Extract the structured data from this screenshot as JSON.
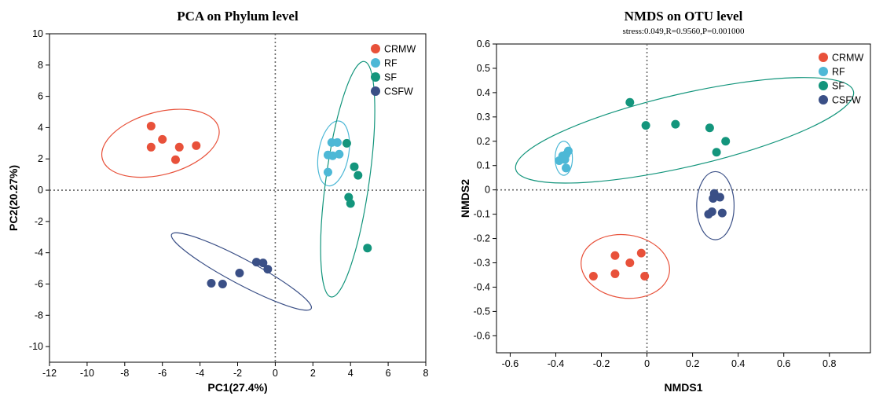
{
  "chart_data": [
    {
      "type": "scatter",
      "title": "PCA on Phylum level",
      "subtitle": "",
      "xlabel": "PC1(27.4%)",
      "ylabel": "PC2(20.27%)",
      "xlim": [
        -12,
        8
      ],
      "ylim": [
        -11,
        10
      ],
      "xticks": [
        -12,
        -10,
        -8,
        -6,
        -4,
        -2,
        0,
        2,
        4,
        6,
        8
      ],
      "yticks": [
        -10,
        -8,
        -6,
        -4,
        -2,
        0,
        2,
        4,
        6,
        8,
        10
      ],
      "reference_lines": {
        "x": 0,
        "y": 0,
        "style": "dotted"
      },
      "legend": {
        "placement": "top-right"
      },
      "series": [
        {
          "name": "CRMW",
          "color": "#e8513a",
          "points": [
            [
              -6.6,
              4.1
            ],
            [
              -6.6,
              2.75
            ],
            [
              -6.0,
              3.25
            ],
            [
              -5.1,
              2.75
            ],
            [
              -5.3,
              1.95
            ],
            [
              -4.2,
              2.85
            ]
          ],
          "ellipse": {
            "cx": -6.1,
            "cy": 3.0,
            "rx": 3.2,
            "ry": 2.0,
            "angle_deg": -15
          }
        },
        {
          "name": "RF",
          "color": "#4db8d6",
          "points": [
            [
              2.8,
              2.25
            ],
            [
              3.0,
              3.05
            ],
            [
              3.05,
              2.2
            ],
            [
              3.3,
              3.05
            ],
            [
              3.4,
              2.3
            ],
            [
              2.8,
              1.15
            ]
          ],
          "ellipse": {
            "cx": 3.1,
            "cy": 2.35,
            "rx": 0.8,
            "ry": 2.1,
            "angle_deg": 10
          }
        },
        {
          "name": "SF",
          "color": "#13957c",
          "points": [
            [
              3.8,
              3.0
            ],
            [
              4.2,
              1.5
            ],
            [
              4.4,
              0.95
            ],
            [
              3.9,
              -0.45
            ],
            [
              4.0,
              -0.85
            ],
            [
              4.9,
              -3.7
            ]
          ],
          "ellipse": {
            "cx": 3.85,
            "cy": 0.7,
            "rx": 1.15,
            "ry": 7.6,
            "angle_deg": 8
          }
        },
        {
          "name": "CSFW",
          "color": "#3a4f86",
          "points": [
            [
              -1.0,
              -4.6
            ],
            [
              -0.65,
              -4.65
            ],
            [
              -0.4,
              -5.05
            ],
            [
              -1.9,
              -5.3
            ],
            [
              -2.8,
              -6.0
            ],
            [
              -3.4,
              -5.95
            ]
          ],
          "ellipse": {
            "cx": -1.8,
            "cy": -5.2,
            "rx": 4.2,
            "ry": 0.8,
            "angle_deg": 28
          }
        }
      ]
    },
    {
      "type": "scatter",
      "title": "NMDS on OTU level",
      "subtitle": "stress:0.049,R=0.9560,P=0.001000",
      "xlabel": "NMDS1",
      "ylabel": "NMDS2",
      "xlim": [
        -0.66,
        0.98
      ],
      "ylim": [
        -0.67,
        0.6
      ],
      "xticks": [
        -0.6,
        -0.4,
        -0.2,
        0,
        0.2,
        0.4,
        0.6,
        0.8
      ],
      "yticks": [
        -0.6,
        -0.5,
        -0.4,
        -0.3,
        -0.2,
        -0.1,
        0,
        0.1,
        0.2,
        0.3,
        0.4,
        0.5,
        0.6
      ],
      "reference_lines": {
        "x": 0,
        "y": 0,
        "style": "dotted"
      },
      "legend": {
        "placement": "top-right"
      },
      "series": [
        {
          "name": "CRMW",
          "color": "#e8513a",
          "points": [
            [
              -0.235,
              -0.355
            ],
            [
              -0.14,
              -0.27
            ],
            [
              -0.14,
              -0.345
            ],
            [
              -0.075,
              -0.3
            ],
            [
              -0.025,
              -0.26
            ],
            [
              -0.01,
              -0.355
            ]
          ],
          "ellipse": {
            "cx": -0.095,
            "cy": -0.315,
            "rx": 0.195,
            "ry": 0.13,
            "angle_deg": 8
          }
        },
        {
          "name": "RF",
          "color": "#4db8d6",
          "points": [
            [
              -0.385,
              0.12
            ],
            [
              -0.37,
              0.14
            ],
            [
              -0.355,
              0.145
            ],
            [
              -0.345,
              0.16
            ],
            [
              -0.36,
              0.125
            ],
            [
              -0.355,
              0.09
            ]
          ],
          "ellipse": {
            "cx": -0.365,
            "cy": 0.13,
            "rx": 0.038,
            "ry": 0.07,
            "angle_deg": 0
          }
        },
        {
          "name": "SF",
          "color": "#13957c",
          "points": [
            [
              -0.075,
              0.36
            ],
            [
              -0.005,
              0.265
            ],
            [
              0.125,
              0.27
            ],
            [
              0.275,
              0.255
            ],
            [
              0.345,
              0.2
            ],
            [
              0.305,
              0.155
            ]
          ],
          "ellipse": {
            "cx": 0.165,
            "cy": 0.245,
            "rx": 0.76,
            "ry": 0.15,
            "angle_deg": -13
          }
        },
        {
          "name": "CSFW",
          "color": "#3a4f86",
          "points": [
            [
              0.295,
              -0.015
            ],
            [
              0.29,
              -0.035
            ],
            [
              0.32,
              -0.03
            ],
            [
              0.285,
              -0.09
            ],
            [
              0.27,
              -0.1
            ],
            [
              0.33,
              -0.095
            ]
          ],
          "ellipse": {
            "cx": 0.3,
            "cy": -0.065,
            "rx": 0.082,
            "ry": 0.14,
            "angle_deg": 0
          }
        }
      ]
    }
  ]
}
